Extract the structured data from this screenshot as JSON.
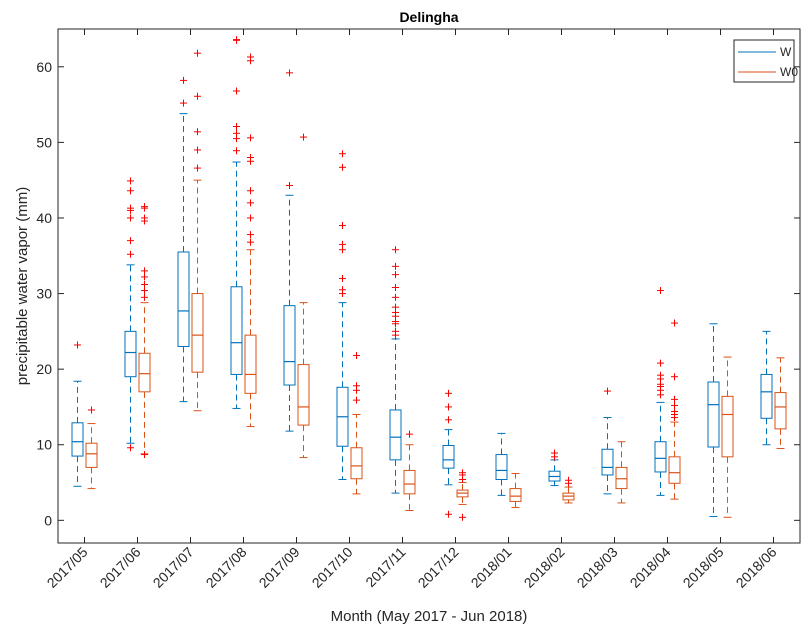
{
  "chart_data": {
    "type": "box",
    "title": "Delingha",
    "xlabel": "Month (May 2017 - Jun 2018)",
    "ylabel": "precipitable water vapor (mm)",
    "ylim": [
      -3,
      65
    ],
    "yticks": [
      0,
      10,
      20,
      30,
      40,
      50,
      60
    ],
    "grid": false,
    "legend_location": "top-right",
    "categories": [
      "2017/05",
      "2017/06",
      "2017/07",
      "2017/08",
      "2017/09",
      "2017/10",
      "2017/11",
      "2017/12",
      "2018/01",
      "2018/02",
      "2018/03",
      "2018/04",
      "2018/05",
      "2018/06"
    ],
    "series": [
      {
        "name": "W",
        "color": "#0072BD",
        "boxes": [
          {
            "wlo": 4.5,
            "q1": 8.5,
            "med": 10.4,
            "q3": 12.9,
            "whi": 18.4,
            "outliers": [
              23.2
            ]
          },
          {
            "wlo": 10.2,
            "q1": 19.0,
            "med": 22.2,
            "q3": 25.0,
            "whi": 33.8,
            "outliers": [
              9.6,
              35.2,
              37.0,
              40.0,
              41.0,
              41.3,
              43.6,
              44.9
            ]
          },
          {
            "wlo": 15.7,
            "q1": 23.0,
            "med": 27.7,
            "q3": 35.5,
            "whi": 53.8,
            "outliers": [
              55.2,
              58.2
            ]
          },
          {
            "wlo": 14.8,
            "q1": 19.3,
            "med": 23.5,
            "q3": 30.9,
            "whi": 47.4,
            "outliers": [
              48.9,
              50.5,
              51.2,
              52.1,
              56.8,
              63.5,
              63.6
            ]
          },
          {
            "wlo": 11.8,
            "q1": 17.9,
            "med": 21.0,
            "q3": 28.4,
            "whi": 43.0,
            "outliers": [
              44.3,
              59.2
            ]
          },
          {
            "wlo": 5.4,
            "q1": 9.8,
            "med": 13.7,
            "q3": 17.6,
            "whi": 28.8,
            "outliers": [
              30.0,
              30.5,
              32.0,
              35.8,
              36.5,
              39.0,
              46.7,
              48.5
            ]
          },
          {
            "wlo": 3.6,
            "q1": 8.0,
            "med": 11.0,
            "q3": 14.6,
            "whi": 24.0,
            "outliers": [
              24.5,
              25.0,
              26.0,
              26.3,
              27.0,
              27.5,
              28.2,
              29.5,
              30.8,
              32.5,
              33.6,
              35.8
            ]
          },
          {
            "wlo": 4.7,
            "q1": 6.9,
            "med": 8.0,
            "q3": 9.9,
            "whi": 12.0,
            "outliers": [
              0.8,
              13.3,
              15.0,
              16.8
            ]
          },
          {
            "wlo": 3.3,
            "q1": 5.4,
            "med": 6.6,
            "q3": 8.7,
            "whi": 11.5,
            "outliers": []
          },
          {
            "wlo": 4.6,
            "q1": 5.2,
            "med": 5.8,
            "q3": 6.5,
            "whi": 8.0,
            "outliers": [
              8.4,
              8.9
            ]
          },
          {
            "wlo": 3.5,
            "q1": 6.0,
            "med": 7.0,
            "q3": 9.4,
            "whi": 13.6,
            "outliers": [
              17.1
            ]
          },
          {
            "wlo": 3.3,
            "q1": 6.4,
            "med": 8.2,
            "q3": 10.4,
            "whi": 15.6,
            "outliers": [
              16.6,
              17.2,
              17.7,
              18.0,
              18.7,
              19.2,
              20.8,
              30.4
            ]
          },
          {
            "wlo": 0.5,
            "q1": 9.7,
            "med": 15.3,
            "q3": 18.3,
            "whi": 26.0,
            "outliers": []
          },
          {
            "wlo": 10.0,
            "q1": 13.5,
            "med": 17.0,
            "q3": 19.3,
            "whi": 25.0,
            "outliers": []
          }
        ]
      },
      {
        "name": "W0",
        "color": "#D95319",
        "boxes": [
          {
            "wlo": 4.2,
            "q1": 7.0,
            "med": 8.8,
            "q3": 10.2,
            "whi": 12.8,
            "outliers": [
              14.6
            ]
          },
          {
            "wlo": 8.8,
            "q1": 17.0,
            "med": 19.4,
            "q3": 22.1,
            "whi": 28.8,
            "outliers": [
              8.7,
              29.5,
              30.4,
              31.2,
              32.2,
              33.0,
              39.6,
              40.0,
              41.3,
              41.5
            ]
          },
          {
            "wlo": 14.5,
            "q1": 19.6,
            "med": 24.5,
            "q3": 30.0,
            "whi": 45.0,
            "outliers": [
              46.6,
              49.0,
              51.4,
              56.1,
              61.8
            ]
          },
          {
            "wlo": 12.4,
            "q1": 16.8,
            "med": 19.3,
            "q3": 24.5,
            "whi": 35.8,
            "outliers": [
              36.8,
              37.8,
              40.0,
              42.0,
              43.6,
              47.5,
              48.0,
              50.6,
              60.8,
              61.3
            ]
          },
          {
            "wlo": 8.3,
            "q1": 12.6,
            "med": 15.0,
            "q3": 20.6,
            "whi": 28.8,
            "outliers": [
              50.7
            ]
          },
          {
            "wlo": 3.5,
            "q1": 5.5,
            "med": 7.2,
            "q3": 9.6,
            "whi": 14.0,
            "outliers": [
              15.9,
              17.2,
              17.8,
              21.8
            ]
          },
          {
            "wlo": 1.3,
            "q1": 3.5,
            "med": 4.8,
            "q3": 6.6,
            "whi": 10.0,
            "outliers": [
              11.4
            ]
          },
          {
            "wlo": 2.1,
            "q1": 3.1,
            "med": 3.6,
            "q3": 4.0,
            "whi": 5.0,
            "outliers": [
              0.4,
              5.4,
              6.0,
              6.3
            ]
          },
          {
            "wlo": 1.7,
            "q1": 2.5,
            "med": 3.2,
            "q3": 4.2,
            "whi": 6.2,
            "outliers": []
          },
          {
            "wlo": 2.3,
            "q1": 2.7,
            "med": 3.2,
            "q3": 3.6,
            "whi": 4.4,
            "outliers": [
              4.9,
              5.3
            ]
          },
          {
            "wlo": 2.3,
            "q1": 4.2,
            "med": 5.5,
            "q3": 7.0,
            "whi": 10.4,
            "outliers": []
          },
          {
            "wlo": 2.8,
            "q1": 4.9,
            "med": 6.3,
            "q3": 8.4,
            "whi": 13.0,
            "outliers": [
              13.6,
              14.0,
              14.4,
              15.2,
              16.0,
              19.0,
              26.1
            ]
          },
          {
            "wlo": 0.4,
            "q1": 8.4,
            "med": 14.0,
            "q3": 16.4,
            "whi": 21.6,
            "outliers": []
          },
          {
            "wlo": 9.5,
            "q1": 12.1,
            "med": 15.0,
            "q3": 16.9,
            "whi": 21.5,
            "outliers": []
          }
        ]
      }
    ]
  }
}
